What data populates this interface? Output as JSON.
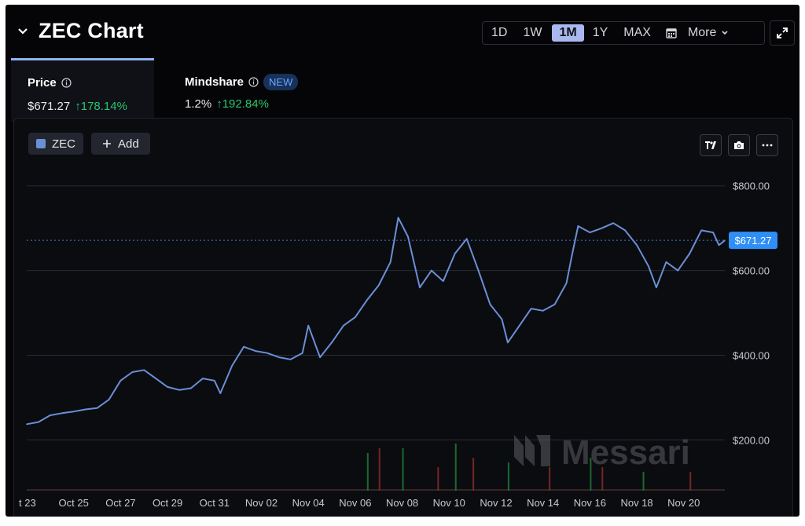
{
  "header": {
    "title": "ZEC Chart"
  },
  "ranges": [
    "1D",
    "1W",
    "1M",
    "1Y",
    "MAX"
  ],
  "active_range": "1M",
  "more_label": "More",
  "tabs": {
    "price": {
      "label": "Price",
      "value": "$671.27",
      "change": "↑178.14%"
    },
    "mindshare": {
      "label": "Mindshare",
      "badge": "NEW",
      "value": "1.2%",
      "change": "↑192.84%"
    }
  },
  "series_chip": {
    "label": "ZEC",
    "color": "#6b8fd6"
  },
  "add_label": "Add",
  "watermark": "Messari",
  "colors": {
    "line": "#6b8fd6",
    "up": "#28c76f",
    "background": "#050507",
    "price_tag": "#2f8ff7"
  },
  "chart_data": {
    "type": "line",
    "x_tick_labels": [
      "t 23",
      "Oct 25",
      "Oct 27",
      "Oct 29",
      "Oct 31",
      "Nov 02",
      "Nov 04",
      "Nov 06",
      "Nov 08",
      "Nov 10",
      "Nov 12",
      "Nov 14",
      "Nov 16",
      "Nov 18",
      "Nov 20"
    ],
    "y_tick_labels": [
      "$800.00",
      "$600.00",
      "$400.00",
      "$200.00"
    ],
    "y_ticks": [
      800,
      600,
      400,
      200
    ],
    "ylim": [
      80,
      870
    ],
    "last_price": 671.27,
    "last_price_label": "$671.27",
    "grid": "horizontal",
    "series": [
      {
        "values": [
          [
            "2025-10-23T00:00",
            237
          ],
          [
            "2025-10-23T12:00",
            242
          ],
          [
            "2025-10-24T00:00",
            258
          ],
          [
            "2025-10-24T12:00",
            263
          ],
          [
            "2025-10-25T00:00",
            267
          ],
          [
            "2025-10-25T12:00",
            272
          ],
          [
            "2025-10-26T00:00",
            275
          ],
          [
            "2025-10-26T12:00",
            295
          ],
          [
            "2025-10-27T00:00",
            340
          ],
          [
            "2025-10-27T12:00",
            360
          ],
          [
            "2025-10-28T00:00",
            365
          ],
          [
            "2025-10-28T12:00",
            345
          ],
          [
            "2025-10-29T00:00",
            325
          ],
          [
            "2025-10-29T12:00",
            318
          ],
          [
            "2025-10-30T00:00",
            322
          ],
          [
            "2025-10-30T12:00",
            345
          ],
          [
            "2025-10-31T00:00",
            340
          ],
          [
            "2025-10-31T06:00",
            310
          ],
          [
            "2025-10-31T18:00",
            375
          ],
          [
            "2025-11-01T06:00",
            420
          ],
          [
            "2025-11-01T18:00",
            410
          ],
          [
            "2025-11-02T06:00",
            405
          ],
          [
            "2025-11-02T18:00",
            395
          ],
          [
            "2025-11-03T06:00",
            390
          ],
          [
            "2025-11-03T18:00",
            405
          ],
          [
            "2025-11-04T00:00",
            470
          ],
          [
            "2025-11-04T12:00",
            395
          ],
          [
            "2025-11-05T00:00",
            430
          ],
          [
            "2025-11-05T12:00",
            470
          ],
          [
            "2025-11-06T00:00",
            490
          ],
          [
            "2025-11-06T12:00",
            530
          ],
          [
            "2025-11-07T00:00",
            565
          ],
          [
            "2025-11-07T12:00",
            620
          ],
          [
            "2025-11-07T20:00",
            725
          ],
          [
            "2025-11-08T06:00",
            680
          ],
          [
            "2025-11-08T18:00",
            560
          ],
          [
            "2025-11-09T06:00",
            600
          ],
          [
            "2025-11-09T18:00",
            575
          ],
          [
            "2025-11-10T06:00",
            640
          ],
          [
            "2025-11-10T18:00",
            675
          ],
          [
            "2025-11-11T06:00",
            600
          ],
          [
            "2025-11-11T18:00",
            520
          ],
          [
            "2025-11-12T06:00",
            485
          ],
          [
            "2025-11-12T12:00",
            430
          ],
          [
            "2025-11-13T00:00",
            470
          ],
          [
            "2025-11-13T12:00",
            510
          ],
          [
            "2025-11-14T00:00",
            505
          ],
          [
            "2025-11-14T12:00",
            520
          ],
          [
            "2025-11-15T00:00",
            570
          ],
          [
            "2025-11-15T06:00",
            640
          ],
          [
            "2025-11-15T12:00",
            705
          ],
          [
            "2025-11-16T00:00",
            690
          ],
          [
            "2025-11-16T12:00",
            700
          ],
          [
            "2025-11-17T00:00",
            712
          ],
          [
            "2025-11-17T12:00",
            695
          ],
          [
            "2025-11-18T00:00",
            660
          ],
          [
            "2025-11-18T12:00",
            610
          ],
          [
            "2025-11-18T20:00",
            560
          ],
          [
            "2025-11-19T06:00",
            620
          ],
          [
            "2025-11-19T18:00",
            600
          ],
          [
            "2025-11-20T06:00",
            640
          ],
          [
            "2025-11-20T18:00",
            695
          ],
          [
            "2025-11-21T06:00",
            690
          ],
          [
            "2025-11-21T12:00",
            660
          ],
          [
            "2025-11-21T18:00",
            671
          ]
        ]
      }
    ],
    "volume": [
      [
        "2025-11-06T12:00",
        0.8
      ],
      [
        "2025-11-07T00:00",
        0.9
      ],
      [
        "2025-11-08T00:00",
        0.9
      ],
      [
        "2025-11-09T12:00",
        0.5
      ],
      [
        "2025-11-10T06:00",
        1.0
      ],
      [
        "2025-11-11T00:00",
        0.7
      ],
      [
        "2025-11-12T12:00",
        0.6
      ],
      [
        "2025-11-14T06:00",
        0.5
      ],
      [
        "2025-11-16T00:00",
        0.7
      ],
      [
        "2025-11-16T12:00",
        0.5
      ],
      [
        "2025-11-18T06:00",
        0.4
      ],
      [
        "2025-11-20T06:00",
        0.4
      ]
    ]
  }
}
